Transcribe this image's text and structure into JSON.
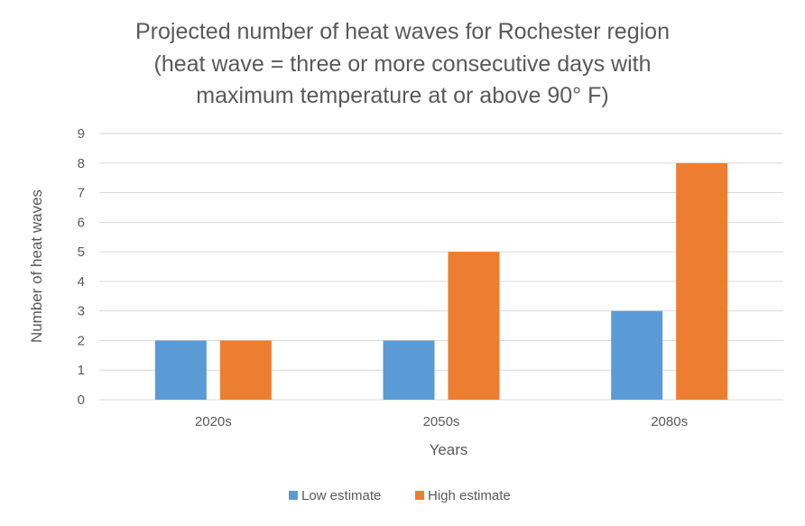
{
  "chart_data": {
    "type": "bar",
    "title_lines": [
      "Projected number of heat waves for Rochester region",
      "(heat wave = three or more consecutive days with",
      "maximum temperature at or above 90° F)"
    ],
    "categories": [
      "2020s",
      "2050s",
      "2080s"
    ],
    "series": [
      {
        "name": "Low estimate",
        "values": [
          2,
          2,
          3
        ],
        "color": "#5b9bd5"
      },
      {
        "name": "High estimate",
        "values": [
          2,
          5,
          8
        ],
        "color": "#ed7d31"
      }
    ],
    "xlabel": "Years",
    "ylabel": "Number of heat waves",
    "ylim": [
      0,
      9
    ],
    "yticks": [
      "0",
      "1",
      "2",
      "3",
      "4",
      "5",
      "6",
      "7",
      "8",
      "9"
    ],
    "grid": true,
    "legend_position": "bottom"
  }
}
